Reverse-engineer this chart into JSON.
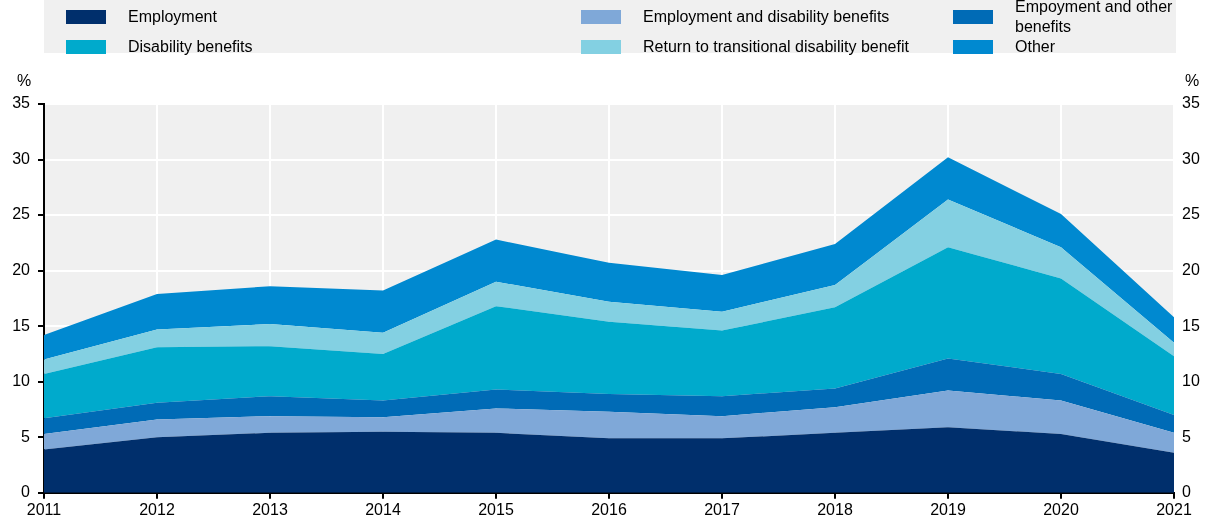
{
  "chart_data": {
    "type": "area",
    "stacked": true,
    "ylabel": "%",
    "y2label": "%",
    "x": [
      2011,
      2012,
      2013,
      2014,
      2015,
      2016,
      2017,
      2018,
      2019,
      2020,
      2021
    ],
    "xlim": [
      2011,
      2021
    ],
    "xticks": [
      2011,
      2012,
      2013,
      2014,
      2015,
      2016,
      2017,
      2018,
      2019,
      2020,
      2021
    ],
    "ylim": [
      0,
      35
    ],
    "yticks": [
      0,
      5,
      10,
      15,
      20,
      25,
      30,
      35
    ],
    "y2lim": [
      0,
      35
    ],
    "y2ticks": [
      0,
      5,
      10,
      15,
      20,
      25,
      30,
      35
    ],
    "grid": true,
    "legend": "top",
    "series": [
      {
        "name": "Employment",
        "color": "#002f6c",
        "values": [
          3.9,
          5.0,
          5.4,
          5.5,
          5.4,
          4.9,
          4.9,
          5.4,
          5.9,
          5.3,
          3.6
        ]
      },
      {
        "name": "Employment and disability benefits",
        "color": "#7fa8d8",
        "values": [
          1.4,
          1.6,
          1.5,
          1.3,
          2.2,
          2.4,
          2.0,
          2.3,
          3.3,
          3.0,
          1.8
        ]
      },
      {
        "name": "Empoyment and other benefits",
        "color": "#006bb6",
        "values": [
          1.4,
          1.5,
          1.8,
          1.5,
          1.7,
          1.6,
          1.8,
          1.7,
          2.9,
          2.4,
          1.6
        ]
      },
      {
        "name": "Disability benefits",
        "color": "#00aacc",
        "values": [
          4.0,
          5.0,
          4.5,
          4.2,
          7.5,
          6.5,
          5.9,
          7.3,
          10.0,
          8.6,
          5.3
        ]
      },
      {
        "name": "Return to transitional disability benefit",
        "color": "#83d0e2",
        "values": [
          1.3,
          1.6,
          2.0,
          1.9,
          2.2,
          1.8,
          1.7,
          2.0,
          4.3,
          2.8,
          1.2
        ]
      },
      {
        "name": "Other",
        "color": "#0089d0",
        "values": [
          2.2,
          3.2,
          3.4,
          3.8,
          3.8,
          3.5,
          3.3,
          3.7,
          3.8,
          3.0,
          2.3
        ]
      }
    ]
  }
}
